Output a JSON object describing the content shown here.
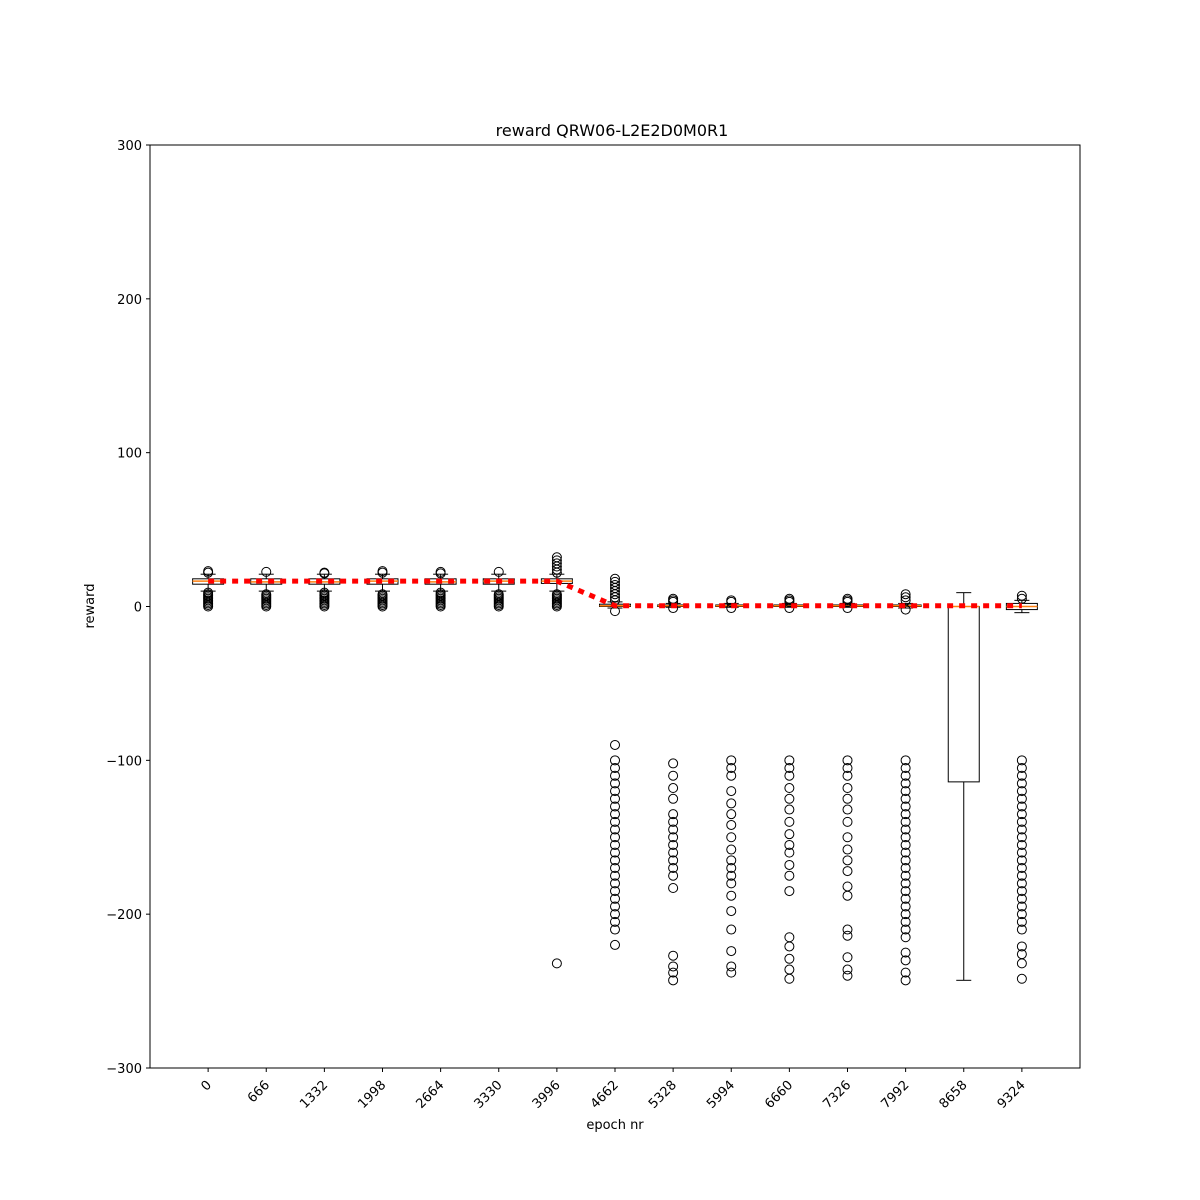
{
  "chart_data": {
    "type": "box",
    "title": "reward QRW06-L2E2D0M0R1",
    "xlabel": "epoch nr",
    "ylabel": "reward",
    "ylim": [
      -300,
      300
    ],
    "yticks": [
      -300,
      -200,
      -100,
      0,
      100,
      200,
      300
    ],
    "categories": [
      "0",
      "666",
      "1332",
      "1998",
      "2664",
      "3330",
      "3996",
      "4662",
      "5328",
      "5994",
      "6660",
      "7326",
      "7992",
      "8658",
      "9324"
    ],
    "grid": false,
    "legend": "none",
    "colors": {
      "box": "#000000",
      "median": "#ff7f0e",
      "mean_line": "#ff0000",
      "box_fill": "#ffffff"
    },
    "boxes": [
      {
        "q1": 14.5,
        "median": 16.5,
        "q3": 18,
        "whislo": 10,
        "whishi": 21,
        "fliers": [
          0,
          1,
          2,
          3,
          4,
          5,
          6,
          7,
          8,
          9,
          22,
          23
        ]
      },
      {
        "q1": 14.5,
        "median": 16,
        "q3": 18,
        "whislo": 10,
        "whishi": 21,
        "fliers": [
          0,
          1,
          2,
          3,
          4,
          5,
          6,
          7,
          8,
          22.5
        ]
      },
      {
        "q1": 14.5,
        "median": 16,
        "q3": 18,
        "whislo": 10,
        "whishi": 21,
        "fliers": [
          0,
          1,
          2,
          3,
          4,
          5,
          6,
          7,
          8,
          9,
          21.5,
          22
        ]
      },
      {
        "q1": 14.5,
        "median": 16.5,
        "q3": 18,
        "whislo": 10,
        "whishi": 21,
        "fliers": [
          0,
          1,
          2,
          3,
          4,
          5,
          6,
          7,
          8,
          22,
          23
        ]
      },
      {
        "q1": 14.5,
        "median": 16,
        "q3": 18,
        "whislo": 10,
        "whishi": 21,
        "fliers": [
          0,
          1,
          2,
          3,
          4,
          5,
          6,
          7,
          8,
          9,
          21.5,
          22.5
        ]
      },
      {
        "q1": 14.5,
        "median": 16.5,
        "q3": 18,
        "whislo": 10,
        "whishi": 21,
        "fliers": [
          0,
          1,
          2,
          3,
          4,
          5,
          6,
          7,
          8,
          22.5
        ]
      },
      {
        "q1": 15,
        "median": 16.5,
        "q3": 18,
        "whislo": 10,
        "whishi": 21,
        "fliers": [
          0,
          1,
          2,
          3,
          4,
          5,
          6,
          7,
          8,
          22,
          24,
          26,
          28,
          30,
          32,
          -232
        ]
      },
      {
        "q1": 0,
        "median": 0.5,
        "q3": 1.5,
        "whislo": -1,
        "whishi": 3,
        "fliers": [
          4,
          6,
          8,
          10,
          12,
          14,
          16,
          18,
          -3,
          -90,
          -100,
          -105,
          -110,
          -115,
          -120,
          -125,
          -130,
          -135,
          -140,
          -145,
          -150,
          -155,
          -160,
          -165,
          -170,
          -175,
          -180,
          -185,
          -190,
          -195,
          -200,
          -205,
          -210,
          -220
        ]
      },
      {
        "q1": 0,
        "median": 0.5,
        "q3": 1,
        "whislo": -0.5,
        "whishi": 2,
        "fliers": [
          3,
          4,
          5,
          -1,
          -102,
          -110,
          -118,
          -125,
          -135,
          -140,
          -145,
          -150,
          -155,
          -160,
          -165,
          -170,
          -175,
          -183,
          -227,
          -234,
          -238,
          -243
        ]
      },
      {
        "q1": 0,
        "median": 0.5,
        "q3": 1,
        "whislo": -0.5,
        "whishi": 2,
        "fliers": [
          3,
          4,
          -1,
          -100,
          -105,
          -110,
          -120,
          -128,
          -135,
          -142,
          -150,
          -158,
          -165,
          -170,
          -175,
          -180,
          -188,
          -198,
          -210,
          -224,
          -234,
          -238
        ]
      },
      {
        "q1": 0,
        "median": 0.5,
        "q3": 1,
        "whislo": -0.5,
        "whishi": 2,
        "fliers": [
          3,
          4,
          5,
          -1,
          -100,
          -105,
          -110,
          -118,
          -125,
          -132,
          -140,
          -148,
          -155,
          -160,
          -168,
          -175,
          -185,
          -215,
          -221,
          -229,
          -236,
          -242
        ]
      },
      {
        "q1": 0,
        "median": 0.5,
        "q3": 1,
        "whislo": -0.5,
        "whishi": 2,
        "fliers": [
          3,
          4,
          5,
          -1,
          -100,
          -105,
          -110,
          -118,
          -125,
          -132,
          -140,
          -150,
          -158,
          -165,
          -172,
          -182,
          -188,
          -210,
          -214,
          -228,
          -236,
          -240
        ]
      },
      {
        "q1": 0,
        "median": 0.5,
        "q3": 1,
        "whislo": -1,
        "whishi": 2,
        "fliers": [
          4,
          6,
          8,
          -2,
          -100,
          -105,
          -110,
          -115,
          -120,
          -125,
          -130,
          -135,
          -140,
          -145,
          -150,
          -155,
          -160,
          -165,
          -170,
          -175,
          -180,
          -185,
          -190,
          -195,
          -200,
          -205,
          -210,
          -215,
          -225,
          -230,
          -238,
          -243
        ]
      },
      {
        "q1": -114,
        "median": 0,
        "q3": 0,
        "whislo": -243,
        "whishi": 9,
        "fliers": []
      },
      {
        "q1": -2,
        "median": 0,
        "q3": 2,
        "whislo": -4,
        "whishi": 4,
        "fliers": [
          5,
          7,
          -100,
          -105,
          -110,
          -115,
          -120,
          -125,
          -130,
          -135,
          -140,
          -145,
          -150,
          -155,
          -160,
          -165,
          -170,
          -175,
          -180,
          -185,
          -190,
          -195,
          -200,
          -205,
          -210,
          -221,
          -226,
          -232,
          -242
        ]
      }
    ],
    "mean_line": [
      16.5,
      16.5,
      16.5,
      16.5,
      16.5,
      16.5,
      16.5,
      0.5,
      0.5,
      0.5,
      0.5,
      0.5,
      0.5,
      0.5,
      0.5
    ]
  }
}
